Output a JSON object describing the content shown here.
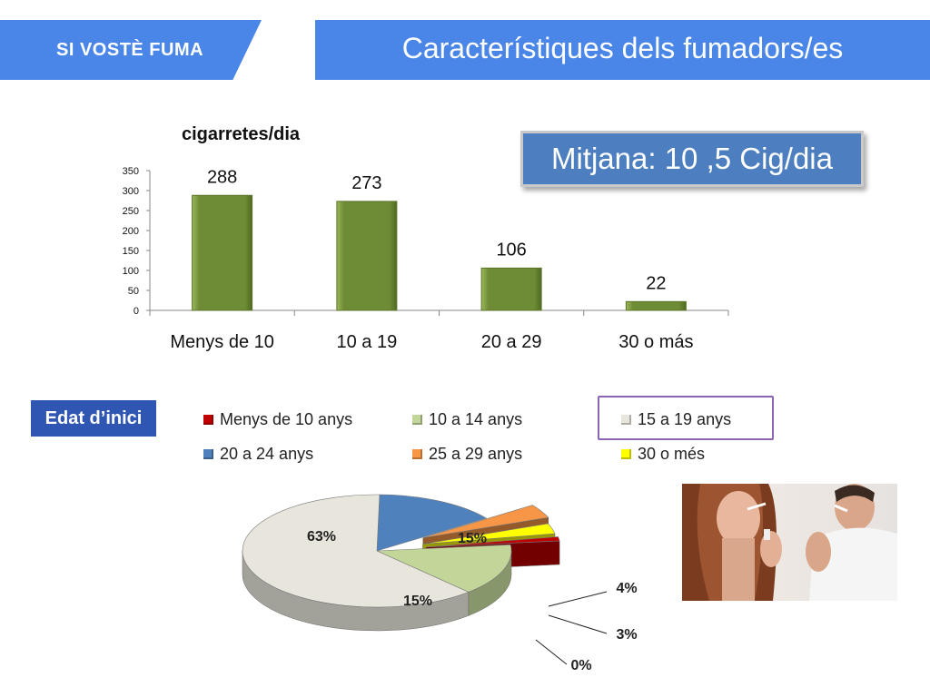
{
  "header": {
    "tag": "SI VOSTÈ FUMA",
    "title": "Característiques dels fumadors/es"
  },
  "mitjana": "Mitjana: 10 ,5 Cig/dia",
  "edat_label": "Edat d’inici",
  "colors": {
    "header_blue": "#4a86e8",
    "bar_green": "#6e8b35",
    "mitjana_blue": "#4d7fc0",
    "edat_blue": "#3056b3",
    "highlight_purple": "#8b64b4"
  },
  "chart_data": [
    {
      "type": "bar",
      "title": "cigarretes/dia",
      "categories": [
        "Menys de 10",
        "10 a 19",
        "20 a 29",
        "30 o más"
      ],
      "values": [
        288,
        273,
        106,
        22
      ],
      "ylim": [
        0,
        350
      ],
      "yticks": [
        0,
        50,
        100,
        150,
        200,
        250,
        300,
        350
      ],
      "xlabel": "",
      "ylabel": "",
      "grid": false,
      "legend": "none",
      "color": "#6e8b35"
    },
    {
      "type": "pie",
      "style": "3d-exploded",
      "legend": "top",
      "categories": [
        "Menys de 10 anys",
        "10 a 14 anys",
        "15 a 19 anys",
        "20 a 24 anys",
        "25 a 29 anys",
        "30 o més"
      ],
      "colors": [
        "#c00000",
        "#c2d69a",
        "#e8e6dc",
        "#4f81bd",
        "#f79646",
        "#ffff00"
      ],
      "values": [
        0,
        15,
        63,
        15,
        4,
        3
      ],
      "labels": [
        "0%",
        "15%",
        "63%",
        "15%",
        "4%",
        "3%"
      ],
      "highlighted_legend": "15 a 19 anys"
    }
  ]
}
